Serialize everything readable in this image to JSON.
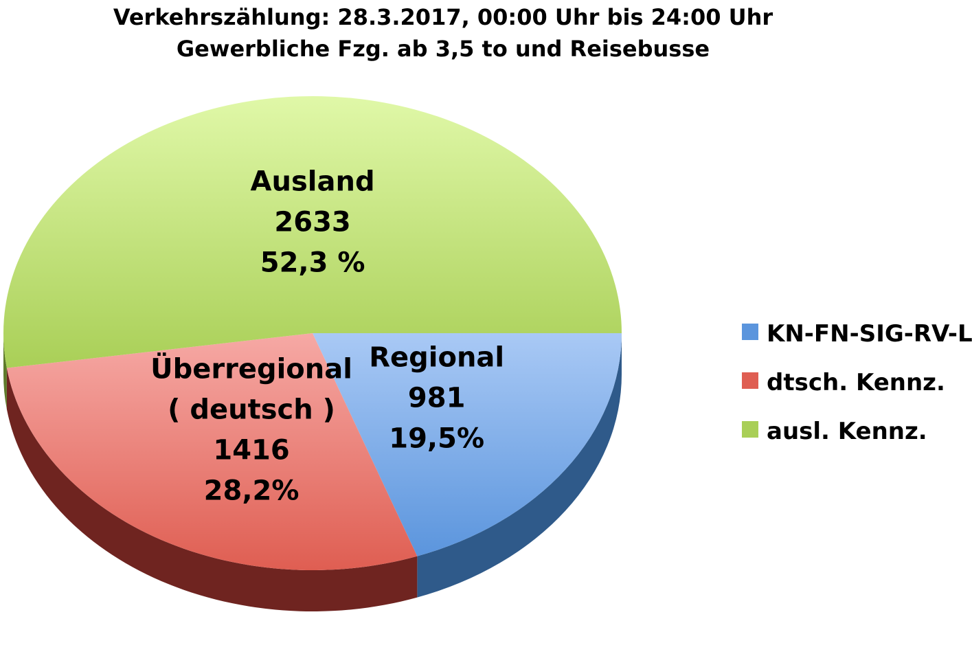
{
  "chart_data": {
    "type": "pie",
    "title": "Verkehrszählung: 28.3.2017, 00:00 Uhr bis 24:00 Uhr",
    "subtitle": "Gewerbliche Fzg. ab 3,5 to und Reisebusse",
    "legend_position": "right",
    "slices": [
      {
        "legend": "KN-FN-SIG-RV-Li",
        "label_lines": [
          "Regional",
          "981",
          "19,5%"
        ],
        "value": 981,
        "percent": 19.5,
        "color_top": "#a9c9f5",
        "color_bottom": "#5b95dd",
        "color_side": "#2f5a8a"
      },
      {
        "legend": "dtsch. Kennz.",
        "label_lines": [
          "Überregional",
          "( deutsch )",
          "1416",
          "28,2%"
        ],
        "value": 1416,
        "percent": 28.2,
        "color_top": "#f6a9a5",
        "color_bottom": "#df5e52",
        "color_side": "#6f2420"
      },
      {
        "legend": "ausl. Kennz.",
        "label_lines": [
          "Ausland",
          "2633",
          "52,3 %"
        ],
        "value": 2633,
        "percent": 52.3,
        "color_top": "#e0f8a8",
        "color_bottom": "#a9cf57",
        "color_side": "#5e7a2a"
      }
    ]
  }
}
